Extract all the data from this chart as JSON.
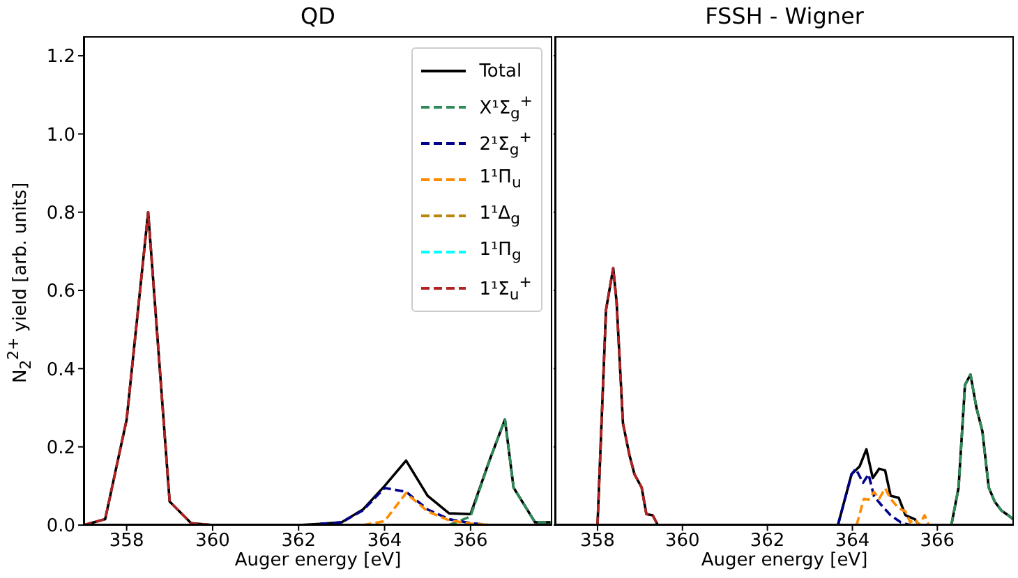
{
  "chart_data": [
    {
      "type": "line",
      "title": "QD",
      "xlabel": "Auger energy [eV]",
      "ylabel": "N$_{2}$$^{2+}$ yield [arb. units]",
      "xlim": [
        357,
        367.9
      ],
      "xticks": [
        358,
        360,
        362,
        364,
        366
      ],
      "ylim": [
        0,
        1.25
      ],
      "yticks": [
        {
          "value": 0,
          "label": "0.0"
        },
        0.2,
        0.4,
        0.6,
        0.8,
        {
          "value": 1,
          "label": "1.0"
        },
        1.2
      ],
      "legend": "top right",
      "grid": false,
      "marker": "none",
      "x": [
        357,
        357.5,
        358,
        358.5,
        359,
        359.5,
        360,
        360.5,
        361,
        361.5,
        362,
        362.5,
        363,
        363.5,
        364,
        364.5,
        365,
        365.5,
        366,
        366.45,
        366.8,
        367,
        367.5,
        367.9
      ],
      "series": [
        {
          "name": "Total",
          "color": "#000000",
          "line_style": "solid",
          "values": [
            0,
            0.015,
            0.27,
            0.8,
            0.06,
            0.005,
            0,
            0,
            0,
            0,
            0,
            0.003,
            0.007,
            0.04,
            0.1,
            0.165,
            0.075,
            0.03,
            0.028,
            0.168,
            0.27,
            0.096,
            0.007,
            0.007
          ]
        },
        {
          "name": "X¹Σ$_{g}$$^{+}$",
          "color": "#2e8b57",
          "line_style": "dashed",
          "values": [
            null,
            null,
            null,
            null,
            null,
            null,
            null,
            null,
            null,
            null,
            null,
            null,
            null,
            null,
            null,
            null,
            null,
            0,
            0.022,
            0.168,
            0.27,
            0.096,
            0.007,
            0.007
          ]
        },
        {
          "name": "2¹Σ$_{g}$$^{+}$",
          "color": "#00008b",
          "line_style": "dashed",
          "values": [
            null,
            null,
            null,
            null,
            null,
            null,
            null,
            null,
            null,
            null,
            null,
            0.003,
            0.007,
            0.038,
            0.095,
            0.085,
            0.04,
            0.015,
            0.005,
            0,
            null,
            null,
            null,
            null
          ]
        },
        {
          "name": "1¹Π$_{u}$",
          "color": "#ff8c00",
          "line_style": "dashed",
          "values": [
            null,
            null,
            null,
            null,
            null,
            null,
            null,
            null,
            null,
            null,
            null,
            null,
            null,
            0,
            0.01,
            0.082,
            0.035,
            0.012,
            0.004,
            0,
            null,
            null,
            null,
            null
          ]
        },
        {
          "name": "1¹Δ$_{g}$",
          "color": "#b8860b",
          "line_style": "dashed",
          "values": [
            null,
            null,
            null,
            null,
            null,
            null,
            null,
            null,
            null,
            null,
            null,
            null,
            null,
            null,
            null,
            null,
            null,
            null,
            null,
            null,
            null,
            null,
            null,
            null
          ]
        },
        {
          "name": "1¹Π$_{g}$",
          "color": "#00ffff",
          "line_style": "dashed",
          "values": [
            null,
            null,
            null,
            null,
            null,
            null,
            null,
            null,
            null,
            null,
            null,
            null,
            null,
            null,
            null,
            null,
            null,
            null,
            null,
            null,
            null,
            null,
            null,
            null
          ]
        },
        {
          "name": "1¹Σ$_{u}$$^{+}$",
          "color": "#b22222",
          "line_style": "dashed",
          "values": [
            0,
            0.015,
            0.27,
            0.8,
            0.06,
            0.005,
            0,
            null,
            null,
            null,
            null,
            null,
            null,
            null,
            null,
            null,
            null,
            null,
            null,
            null,
            null,
            null,
            null,
            null
          ]
        }
      ]
    },
    {
      "type": "line",
      "title": "FSSH - Wigner",
      "xlabel": "Auger energy [eV]",
      "xlim": [
        357,
        367.8
      ],
      "xticks": [
        358,
        360,
        362,
        364,
        366
      ],
      "ylim": [
        0,
        1.25
      ],
      "yticks": [
        {
          "value": 0,
          "label": null
        },
        {
          "value": 0.2,
          "label": null
        },
        {
          "value": 0.4,
          "label": null
        },
        {
          "value": 0.6,
          "label": null
        },
        {
          "value": 0.8,
          "label": null
        },
        {
          "value": 1,
          "label": null
        },
        {
          "value": 1.2,
          "label": null
        }
      ],
      "tick_labels": "x",
      "legend": false,
      "grid": false,
      "marker": "none",
      "series": [
        {
          "color": "#000000",
          "line_style": "solid",
          "x": [
            357,
            358,
            358.2,
            358.37,
            358.45,
            358.6,
            358.75,
            358.87,
            359.04,
            359.15,
            359.3,
            359.42,
            363.66,
            363.98,
            364.17,
            364.33,
            364.48,
            364.63,
            364.77,
            364.9,
            365.09,
            365.25,
            365.47,
            365.57,
            366.33,
            366.5,
            366.65,
            366.78,
            366.92,
            367.06,
            367.21,
            367.35,
            367.51,
            367.67,
            367.78
          ],
          "values": [
            0,
            0,
            0.55,
            0.657,
            0.57,
            0.26,
            0.18,
            0.13,
            0.096,
            0.028,
            0.025,
            0,
            0,
            0.13,
            0.15,
            0.194,
            0.12,
            0.144,
            0.14,
            0.075,
            0.07,
            0.025,
            0.015,
            0,
            0,
            0.096,
            0.358,
            0.385,
            0.3,
            0.24,
            0.096,
            0.06,
            0.037,
            0.025,
            0.015
          ]
        },
        {
          "color": "#2e8b57",
          "line_style": "dashed",
          "x": [
            366.33,
            366.5,
            366.65,
            366.78,
            366.92,
            367.06,
            367.21,
            367.35,
            367.51,
            367.67,
            367.78
          ],
          "values": [
            0,
            0.096,
            0.358,
            0.385,
            0.3,
            0.24,
            0.096,
            0.06,
            0.037,
            0.025,
            0.015
          ]
        },
        {
          "color": "#00008b",
          "line_style": "dashed",
          "x": [
            363.66,
            363.98,
            364.08,
            364.25,
            364.38,
            364.51,
            364.7,
            364.9,
            365.14,
            365.36
          ],
          "values": [
            0,
            0.13,
            0.144,
            0.108,
            0.13,
            0.073,
            0.049,
            0.025,
            0.007,
            0
          ]
        },
        {
          "color": "#ff8c00",
          "line_style": "dashed",
          "x": [
            364.1,
            364.27,
            364.38,
            364.51,
            364.63,
            364.77,
            364.9,
            365.09,
            365.25,
            365.36,
            365.47,
            365.57,
            365.7,
            365.8
          ],
          "values": [
            0,
            0.067,
            0.065,
            0.085,
            0.067,
            0.094,
            0.067,
            0.043,
            0.035,
            0.007,
            0.015,
            0,
            0.025,
            0
          ]
        },
        {
          "color": "#b22222",
          "line_style": "dashed",
          "x": [
            358,
            358.2,
            358.37,
            358.45,
            358.6,
            358.75,
            358.87,
            359.04,
            359.15,
            359.3,
            359.42
          ],
          "values": [
            0,
            0.55,
            0.657,
            0.57,
            0.26,
            0.18,
            0.13,
            0.096,
            0.028,
            0.025,
            0
          ]
        }
      ]
    }
  ]
}
